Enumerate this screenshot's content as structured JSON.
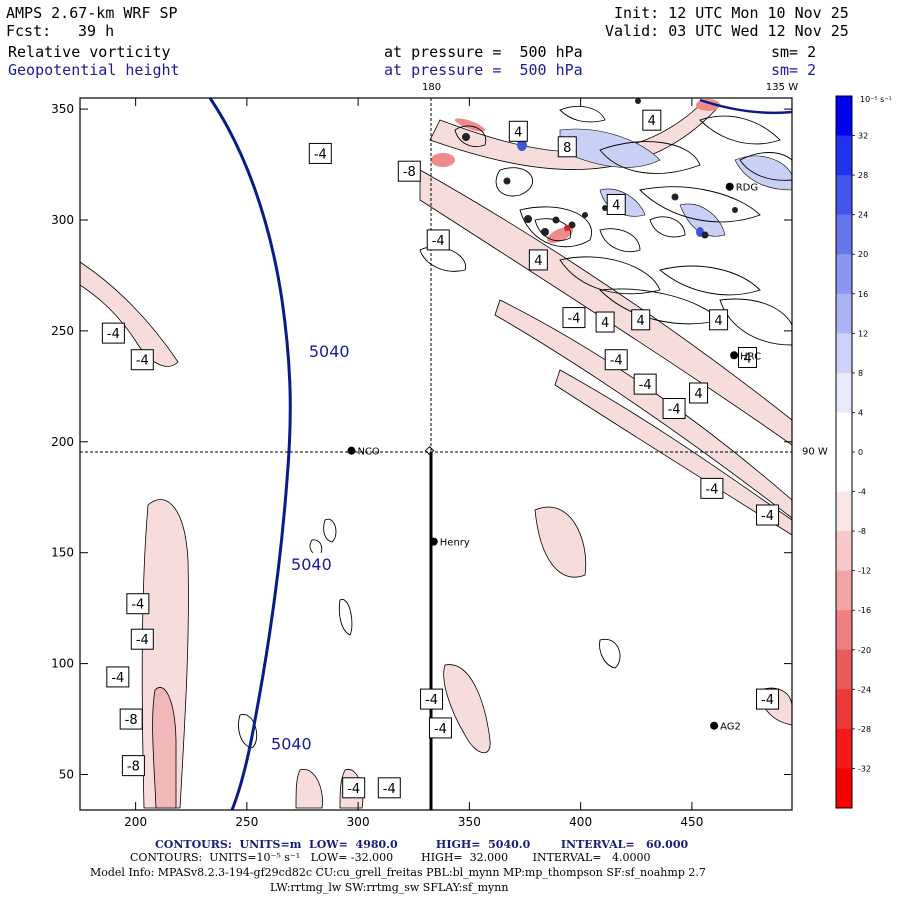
{
  "header": {
    "model": "AMPS 2.67-km WRF SP",
    "forecast_label": "Fcst:",
    "forecast_hours": "39 h",
    "init": "Init: 12 UTC Mon 10 Nov 25",
    "valid": "Valid: 03 UTC Wed 12 Nov 25",
    "field1_name": "Relative vorticity",
    "field1_level": "at pressure =  500 hPa",
    "field1_smooth": "sm= 2",
    "field2_name": "Geopotential height",
    "field2_level": "at pressure =  500 hPa",
    "field2_smooth": "sm= 2"
  },
  "footer": {
    "line1": "CONTOURS:  UNITS=m  LOW=  4980.0          HIGH=  5040.0        INTERVAL=   60.000",
    "line2": "CONTOURS:  UNITS=10⁻⁵ s⁻¹   LOW= -32.000        HIGH=  32.000       INTERVAL=   4.0000",
    "line3": "Model Info: MPASv8.2.3-194-gf29cd82c CU:cu_grell_freitas PBL:bl_mynn MP:mp_thompson SF:sf_noahmp 2.7",
    "line4": "LW:rrtmg_lw SW:rrtmg_sw SFLAY:sf_mynn"
  },
  "colors": {
    "height_contour": "#0a1a8a",
    "vort_contour": "#000000",
    "frame": "#000000"
  },
  "chart_data": {
    "type": "contour",
    "title": "Relative vorticity and Geopotential height at 500 hPa",
    "x_ticks": [
      200,
      250,
      300,
      350,
      400,
      450
    ],
    "y_ticks": [
      50,
      100,
      150,
      200,
      250,
      300,
      350
    ],
    "xlim": [
      175,
      495
    ],
    "ylim": [
      34,
      355
    ],
    "grid_lines": [
      {
        "label": "180",
        "orientation": "vertical",
        "x": 333
      },
      {
        "label": "135 W",
        "orientation": "diagonal"
      },
      {
        "label": "90 W",
        "orientation": "horizontal",
        "y": 196
      }
    ],
    "cross_section": {
      "x": 333,
      "y_from": 34,
      "y_to": 196
    },
    "stations": [
      {
        "name": "NCO",
        "x": 297,
        "y": 196
      },
      {
        "name": "Henry",
        "x": 334,
        "y": 155
      },
      {
        "name": "RDG",
        "x": 467,
        "y": 315
      },
      {
        "name": "HRC",
        "x": 469,
        "y": 239
      },
      {
        "name": "AG2",
        "x": 460,
        "y": 72
      }
    ],
    "height_contours": [
      {
        "level": "5040",
        "label_positions": [
          [
            287,
            241
          ],
          [
            279,
            145
          ],
          [
            270,
            64
          ]
        ]
      }
    ],
    "vorticity_labels": [
      {
        "value": "-4",
        "x": 190,
        "y": 249
      },
      {
        "value": "-4",
        "x": 203,
        "y": 237
      },
      {
        "value": "-4",
        "x": 283,
        "y": 330
      },
      {
        "value": "-8",
        "x": 323,
        "y": 322
      },
      {
        "value": "-4",
        "x": 336,
        "y": 291
      },
      {
        "value": "4",
        "x": 372,
        "y": 340
      },
      {
        "value": "8",
        "x": 394,
        "y": 333
      },
      {
        "value": "4",
        "x": 432,
        "y": 345
      },
      {
        "value": "4",
        "x": 416,
        "y": 307
      },
      {
        "value": "4",
        "x": 381,
        "y": 282
      },
      {
        "value": "-4",
        "x": 397,
        "y": 256
      },
      {
        "value": "4",
        "x": 411,
        "y": 254
      },
      {
        "value": "4",
        "x": 427,
        "y": 255
      },
      {
        "value": "4",
        "x": 462,
        "y": 255
      },
      {
        "value": "4",
        "x": 475,
        "y": 238
      },
      {
        "value": "-4",
        "x": 416,
        "y": 237
      },
      {
        "value": "-4",
        "x": 429,
        "y": 226
      },
      {
        "value": "-4",
        "x": 442,
        "y": 215
      },
      {
        "value": "4",
        "x": 453,
        "y": 222
      },
      {
        "value": "-4",
        "x": 459,
        "y": 179
      },
      {
        "value": "-4",
        "x": 484,
        "y": 167
      },
      {
        "value": "-4",
        "x": 201,
        "y": 127
      },
      {
        "value": "-4",
        "x": 203,
        "y": 111
      },
      {
        "value": "-4",
        "x": 192,
        "y": 94
      },
      {
        "value": "-8",
        "x": 198,
        "y": 75
      },
      {
        "value": "-8",
        "x": 199,
        "y": 54
      },
      {
        "value": "-4",
        "x": 333,
        "y": 84
      },
      {
        "value": "-4",
        "x": 337,
        "y": 71
      },
      {
        "value": "-4",
        "x": 484,
        "y": 84
      },
      {
        "value": "-4",
        "x": 314,
        "y": 44
      },
      {
        "value": "-4",
        "x": 298,
        "y": 44
      }
    ],
    "colorbar": {
      "units": "10⁻⁵ s⁻¹",
      "tick_labels": [
        "32",
        "28",
        "24",
        "20",
        "16",
        "12",
        "8",
        "4",
        "0",
        "-4",
        "-8",
        "-12",
        "-16",
        "-20",
        "-24",
        "-28",
        "-32"
      ],
      "range": [
        -36,
        36
      ]
    }
  }
}
